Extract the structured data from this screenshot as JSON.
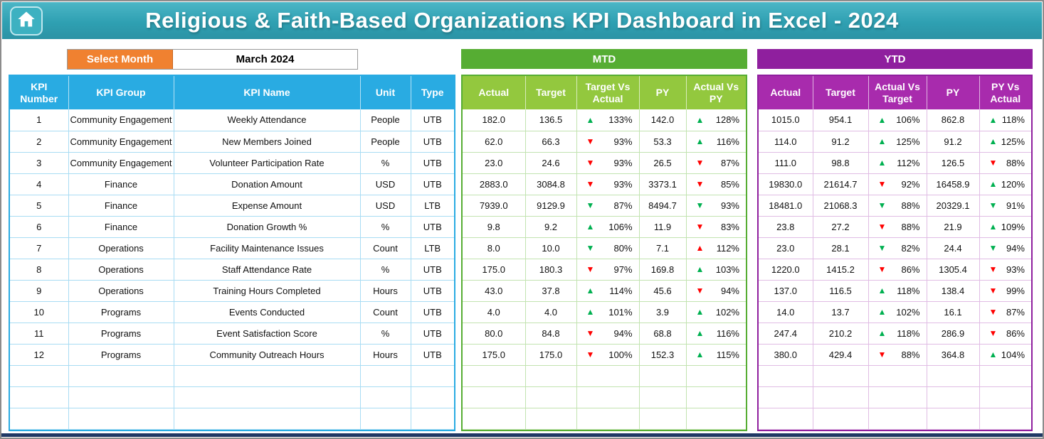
{
  "header": {
    "title": "Religious & Faith-Based Organizations KPI Dashboard in Excel - 2024"
  },
  "controls": {
    "select_month_label": "Select Month",
    "selected_month": "March 2024"
  },
  "icons": {
    "home": "home-icon",
    "up_arrow": "▲",
    "down_arrow": "▼"
  },
  "colors": {
    "banner_teal": "#2fa0b2",
    "accent_blue": "#29abe2",
    "accent_green": "#56ad33",
    "accent_green_light": "#93c83e",
    "accent_purple": "#8f1f9e",
    "accent_purple_light": "#a82bad",
    "accent_orange": "#f08130",
    "good_green": "#00b050",
    "bad_red": "#ff0000"
  },
  "kpi_table": {
    "headers": [
      "KPI Number",
      "KPI Group",
      "KPI Name",
      "Unit",
      "Type"
    ],
    "empty_rows": 3,
    "rows": [
      {
        "number": "1",
        "group": "Community Engagement",
        "name": "Weekly Attendance",
        "unit": "People",
        "type": "UTB"
      },
      {
        "number": "2",
        "group": "Community Engagement",
        "name": "New Members Joined",
        "unit": "People",
        "type": "UTB"
      },
      {
        "number": "3",
        "group": "Community Engagement",
        "name": "Volunteer Participation Rate",
        "unit": "%",
        "type": "UTB"
      },
      {
        "number": "4",
        "group": "Finance",
        "name": "Donation Amount",
        "unit": "USD",
        "type": "UTB"
      },
      {
        "number": "5",
        "group": "Finance",
        "name": "Expense Amount",
        "unit": "USD",
        "type": "LTB"
      },
      {
        "number": "6",
        "group": "Finance",
        "name": "Donation Growth %",
        "unit": "%",
        "type": "UTB"
      },
      {
        "number": "7",
        "group": "Operations",
        "name": "Facility Maintenance Issues",
        "unit": "Count",
        "type": "LTB"
      },
      {
        "number": "8",
        "group": "Operations",
        "name": "Staff Attendance Rate",
        "unit": "%",
        "type": "UTB"
      },
      {
        "number": "9",
        "group": "Operations",
        "name": "Training Hours Completed",
        "unit": "Hours",
        "type": "UTB"
      },
      {
        "number": "10",
        "group": "Programs",
        "name": "Events Conducted",
        "unit": "Count",
        "type": "UTB"
      },
      {
        "number": "11",
        "group": "Programs",
        "name": "Event Satisfaction Score",
        "unit": "%",
        "type": "UTB"
      },
      {
        "number": "12",
        "group": "Programs",
        "name": "Community Outreach Hours",
        "unit": "Hours",
        "type": "UTB"
      }
    ]
  },
  "mtd_table": {
    "title": "MTD",
    "headers": [
      "Actual",
      "Target",
      "Target Vs Actual",
      "PY",
      "Actual Vs PY"
    ],
    "empty_rows": 3,
    "rows": [
      {
        "actual": "182.0",
        "target": "136.5",
        "target_vs_actual": {
          "trend": "up",
          "state": "good",
          "value": "133%"
        },
        "py": "142.0",
        "actual_vs_py": {
          "trend": "up",
          "state": "good",
          "value": "128%"
        }
      },
      {
        "actual": "62.0",
        "target": "66.3",
        "target_vs_actual": {
          "trend": "down",
          "state": "bad",
          "value": "93%"
        },
        "py": "53.3",
        "actual_vs_py": {
          "trend": "up",
          "state": "good",
          "value": "116%"
        }
      },
      {
        "actual": "23.0",
        "target": "24.6",
        "target_vs_actual": {
          "trend": "down",
          "state": "bad",
          "value": "93%"
        },
        "py": "26.5",
        "actual_vs_py": {
          "trend": "down",
          "state": "bad",
          "value": "87%"
        }
      },
      {
        "actual": "2883.0",
        "target": "3084.8",
        "target_vs_actual": {
          "trend": "down",
          "state": "bad",
          "value": "93%"
        },
        "py": "3373.1",
        "actual_vs_py": {
          "trend": "down",
          "state": "bad",
          "value": "85%"
        }
      },
      {
        "actual": "7939.0",
        "target": "9129.9",
        "target_vs_actual": {
          "trend": "down",
          "state": "good",
          "value": "87%"
        },
        "py": "8494.7",
        "actual_vs_py": {
          "trend": "down",
          "state": "good",
          "value": "93%"
        }
      },
      {
        "actual": "9.8",
        "target": "9.2",
        "target_vs_actual": {
          "trend": "up",
          "state": "good",
          "value": "106%"
        },
        "py": "11.9",
        "actual_vs_py": {
          "trend": "down",
          "state": "bad",
          "value": "83%"
        }
      },
      {
        "actual": "8.0",
        "target": "10.0",
        "target_vs_actual": {
          "trend": "down",
          "state": "good",
          "value": "80%"
        },
        "py": "7.1",
        "actual_vs_py": {
          "trend": "up",
          "state": "bad",
          "value": "112%"
        }
      },
      {
        "actual": "175.0",
        "target": "180.3",
        "target_vs_actual": {
          "trend": "down",
          "state": "bad",
          "value": "97%"
        },
        "py": "169.8",
        "actual_vs_py": {
          "trend": "up",
          "state": "good",
          "value": "103%"
        }
      },
      {
        "actual": "43.0",
        "target": "37.8",
        "target_vs_actual": {
          "trend": "up",
          "state": "good",
          "value": "114%"
        },
        "py": "45.6",
        "actual_vs_py": {
          "trend": "down",
          "state": "bad",
          "value": "94%"
        }
      },
      {
        "actual": "4.0",
        "target": "4.0",
        "target_vs_actual": {
          "trend": "up",
          "state": "good",
          "value": "101%"
        },
        "py": "3.9",
        "actual_vs_py": {
          "trend": "up",
          "state": "good",
          "value": "102%"
        }
      },
      {
        "actual": "80.0",
        "target": "84.8",
        "target_vs_actual": {
          "trend": "down",
          "state": "bad",
          "value": "94%"
        },
        "py": "68.8",
        "actual_vs_py": {
          "trend": "up",
          "state": "good",
          "value": "116%"
        }
      },
      {
        "actual": "175.0",
        "target": "175.0",
        "target_vs_actual": {
          "trend": "down",
          "state": "bad",
          "value": "100%"
        },
        "py": "152.3",
        "actual_vs_py": {
          "trend": "up",
          "state": "good",
          "value": "115%"
        }
      }
    ]
  },
  "ytd_table": {
    "title": "YTD",
    "headers": [
      "Actual",
      "Target",
      "Actual Vs Target",
      "PY",
      "PY Vs Actual"
    ],
    "empty_rows": 3,
    "rows": [
      {
        "actual": "1015.0",
        "target": "954.1",
        "actual_vs_target": {
          "trend": "up",
          "state": "good",
          "value": "106%"
        },
        "py": "862.8",
        "py_vs_actual": {
          "trend": "up",
          "state": "good",
          "value": "118%"
        }
      },
      {
        "actual": "114.0",
        "target": "91.2",
        "actual_vs_target": {
          "trend": "up",
          "state": "good",
          "value": "125%"
        },
        "py": "91.2",
        "py_vs_actual": {
          "trend": "up",
          "state": "good",
          "value": "125%"
        }
      },
      {
        "actual": "111.0",
        "target": "98.8",
        "actual_vs_target": {
          "trend": "up",
          "state": "good",
          "value": "112%"
        },
        "py": "126.5",
        "py_vs_actual": {
          "trend": "down",
          "state": "bad",
          "value": "88%"
        }
      },
      {
        "actual": "19830.0",
        "target": "21614.7",
        "actual_vs_target": {
          "trend": "down",
          "state": "bad",
          "value": "92%"
        },
        "py": "16458.9",
        "py_vs_actual": {
          "trend": "up",
          "state": "good",
          "value": "120%"
        }
      },
      {
        "actual": "18481.0",
        "target": "21068.3",
        "actual_vs_target": {
          "trend": "down",
          "state": "good",
          "value": "88%"
        },
        "py": "20329.1",
        "py_vs_actual": {
          "trend": "down",
          "state": "good",
          "value": "91%"
        }
      },
      {
        "actual": "23.8",
        "target": "27.2",
        "actual_vs_target": {
          "trend": "down",
          "state": "bad",
          "value": "88%"
        },
        "py": "21.9",
        "py_vs_actual": {
          "trend": "up",
          "state": "good",
          "value": "109%"
        }
      },
      {
        "actual": "23.0",
        "target": "28.1",
        "actual_vs_target": {
          "trend": "down",
          "state": "good",
          "value": "82%"
        },
        "py": "24.4",
        "py_vs_actual": {
          "trend": "down",
          "state": "good",
          "value": "94%"
        }
      },
      {
        "actual": "1220.0",
        "target": "1415.2",
        "actual_vs_target": {
          "trend": "down",
          "state": "bad",
          "value": "86%"
        },
        "py": "1305.4",
        "py_vs_actual": {
          "trend": "down",
          "state": "bad",
          "value": "93%"
        }
      },
      {
        "actual": "137.0",
        "target": "116.5",
        "actual_vs_target": {
          "trend": "up",
          "state": "good",
          "value": "118%"
        },
        "py": "138.4",
        "py_vs_actual": {
          "trend": "down",
          "state": "bad",
          "value": "99%"
        }
      },
      {
        "actual": "14.0",
        "target": "13.7",
        "actual_vs_target": {
          "trend": "up",
          "state": "good",
          "value": "102%"
        },
        "py": "16.1",
        "py_vs_actual": {
          "trend": "down",
          "state": "bad",
          "value": "87%"
        }
      },
      {
        "actual": "247.4",
        "target": "210.2",
        "actual_vs_target": {
          "trend": "up",
          "state": "good",
          "value": "118%"
        },
        "py": "286.9",
        "py_vs_actual": {
          "trend": "down",
          "state": "bad",
          "value": "86%"
        }
      },
      {
        "actual": "380.0",
        "target": "429.4",
        "actual_vs_target": {
          "trend": "down",
          "state": "bad",
          "value": "88%"
        },
        "py": "364.8",
        "py_vs_actual": {
          "trend": "up",
          "state": "good",
          "value": "104%"
        }
      }
    ]
  }
}
